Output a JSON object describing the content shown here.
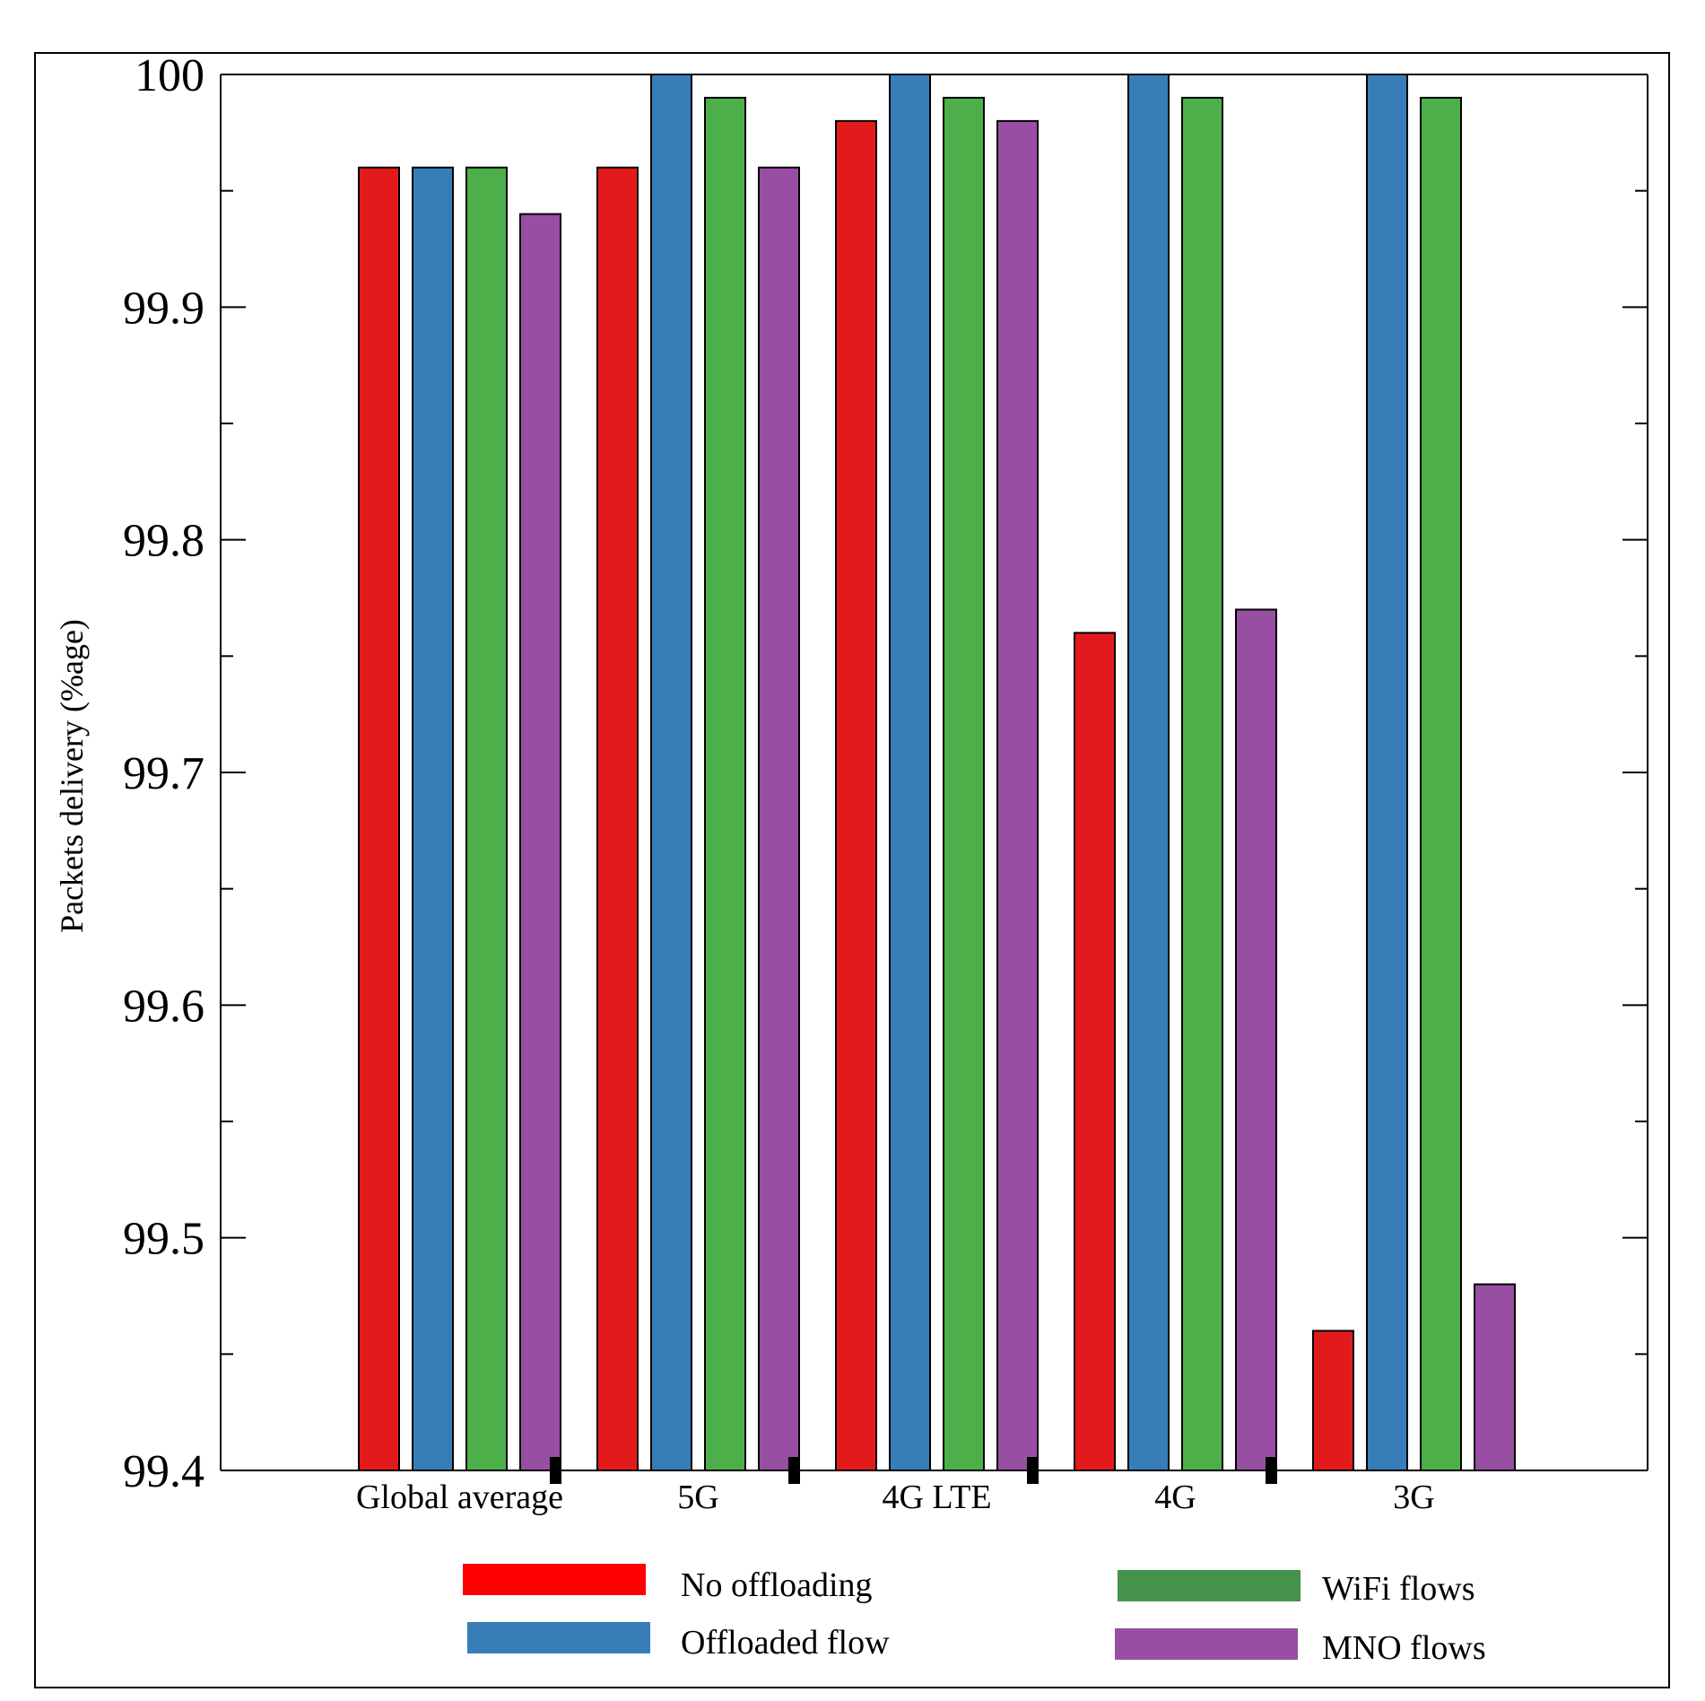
{
  "chart_data": {
    "type": "bar",
    "title": "",
    "xlabel": "",
    "ylabel": "Packets delivery (%age)",
    "ylim": [
      99.4,
      100
    ],
    "yticks": [
      "99.4",
      "99.5",
      "99.6",
      "99.7",
      "99.8",
      "99.9",
      "100"
    ],
    "ytick_values": [
      99.4,
      99.5,
      99.6,
      99.7,
      99.8,
      99.9,
      100
    ],
    "minor_tick_values": [
      99.45,
      99.55,
      99.65,
      99.75,
      99.85,
      99.95
    ],
    "grid": false,
    "legend_position": "bottom",
    "categories": [
      "Global average",
      "5G",
      "4G LTE",
      "4G",
      "3G"
    ],
    "series": [
      {
        "name": "No offloading",
        "color": "#e31a1c",
        "legend_color": "#ff0000",
        "values": [
          99.96,
          99.96,
          99.98,
          99.76,
          99.46
        ]
      },
      {
        "name": "Offloaded flow",
        "color": "#377eb8",
        "legend_color": "#377eb8",
        "values": [
          99.96,
          100,
          100,
          100,
          100
        ]
      },
      {
        "name": "WiFi flows",
        "color": "#4daf4a",
        "legend_color": "#45934a",
        "values": [
          99.96,
          99.99,
          99.99,
          99.99,
          99.99
        ]
      },
      {
        "name": "MNO flows",
        "color": "#984ea3",
        "legend_color": "#984ea3",
        "values": [
          99.94,
          99.96,
          99.98,
          99.77,
          99.48
        ]
      }
    ]
  }
}
